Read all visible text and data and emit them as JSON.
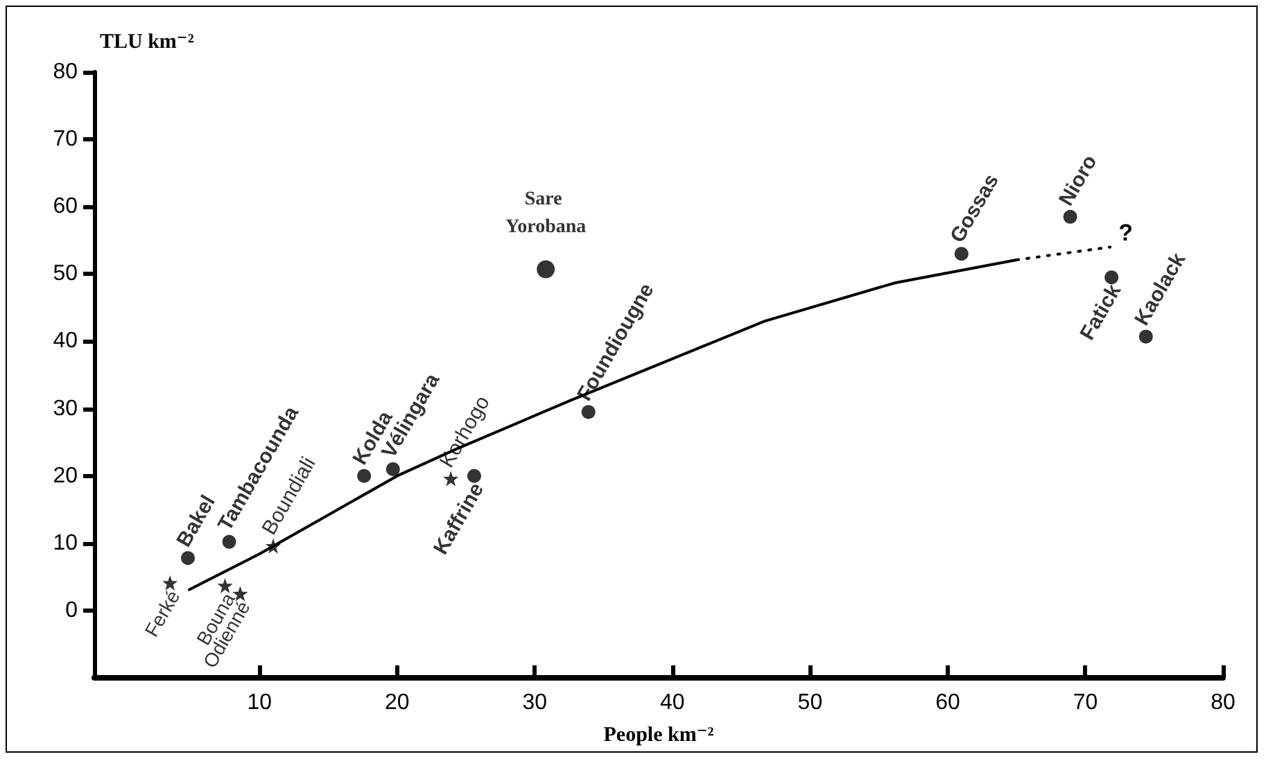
{
  "chart_data": {
    "type": "scatter",
    "xlabel": "People km⁻²",
    "ylabel": "TLU km⁻²",
    "xlim": [
      -2,
      80
    ],
    "xticks": [
      10,
      20,
      30,
      40,
      50,
      60,
      70,
      80
    ],
    "ylim": [
      -10,
      80
    ],
    "yticks": [
      0,
      10,
      20,
      30,
      40,
      50,
      60,
      70,
      80
    ],
    "grid": false,
    "series": [
      {
        "marker": "circle",
        "color": "#000000",
        "x": [
          4.8,
          7.8,
          17.6,
          19.7,
          25.6,
          33.9,
          61,
          68.9,
          71.9,
          74.4
        ],
        "values": [
          7.8,
          10.2,
          20,
          21,
          20,
          29.5,
          53,
          58.5,
          49.5,
          40.7
        ],
        "value_labels": [
          "Bakel",
          "Tambacounda",
          "Kolda",
          "Vélingara",
          "Kaffrine",
          "Foundiougne",
          "Gossas",
          "Nioro",
          "Fatick",
          "Kaolack"
        ]
      },
      {
        "marker": "star",
        "color": "#000000",
        "x": [
          3.5,
          7.5,
          8.6,
          11,
          23.9
        ],
        "values": [
          4.1,
          3.7,
          2.5,
          9.6,
          19.6
        ],
        "value_labels": [
          "Ferké",
          "Bouna",
          "Odienné",
          "Boundiali",
          "Korhogo"
        ]
      },
      {
        "marker": "circle",
        "color": "#000000",
        "x": [
          30.8
        ],
        "values": [
          50.7
        ],
        "value_labels": [
          "Sare Yorobana"
        ]
      },
      {
        "type": "line",
        "marker": "none",
        "line_style": "solid",
        "color": "#000000",
        "x": [
          4.9,
          10,
          20,
          24.3,
          32.7,
          46.7,
          56.2,
          65
        ],
        "values": [
          3.1,
          8.4,
          20,
          24,
          31.3,
          43,
          48.7,
          52.1
        ]
      },
      {
        "type": "line",
        "marker": "none",
        "line_style": "dotted",
        "color": "#000000",
        "x": [
          65,
          71.8
        ],
        "values": [
          52.1,
          54
        ]
      }
    ],
    "annotations": [
      "?"
    ]
  }
}
